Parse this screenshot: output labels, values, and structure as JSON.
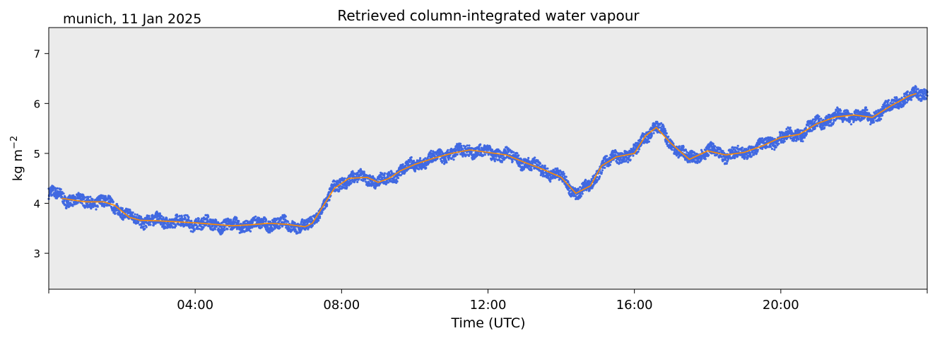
{
  "header": {
    "location_date": "munich, 11 Jan 2025"
  },
  "chart_data": {
    "type": "line",
    "title": "Retrieved column-integrated water vapour",
    "xlabel": "Time (UTC)",
    "ylabel_main": "kg m",
    "ylabel_sup": "−2",
    "x_unit": "hours (UTC)",
    "xlim": [
      0,
      24
    ],
    "ylim": [
      2.28,
      7.52
    ],
    "xticks": [
      {
        "value": 0,
        "label": ""
      },
      {
        "value": 4,
        "label": "04:00"
      },
      {
        "value": 8,
        "label": "08:00"
      },
      {
        "value": 12,
        "label": "12:00"
      },
      {
        "value": 16,
        "label": "16:00"
      },
      {
        "value": 20,
        "label": "20:00"
      },
      {
        "value": 24,
        "label": ""
      }
    ],
    "yticks": [
      3,
      4,
      5,
      6,
      7
    ],
    "grid": false,
    "background": "#ebebeb",
    "series": [
      {
        "style": "scatter-band",
        "color": "#4169e1",
        "band_halfwidth": 0.07,
        "points": [
          [
            0,
            4.2
          ],
          [
            0.25,
            4.18
          ],
          [
            0.5,
            4.08
          ],
          [
            1,
            4.03
          ],
          [
            1.5,
            4.03
          ],
          [
            1.8,
            3.96
          ],
          [
            2.2,
            3.72
          ],
          [
            2.5,
            3.66
          ],
          [
            3,
            3.65
          ],
          [
            3.5,
            3.63
          ],
          [
            4,
            3.61
          ],
          [
            4.5,
            3.58
          ],
          [
            5,
            3.55
          ],
          [
            5.5,
            3.57
          ],
          [
            6,
            3.6
          ],
          [
            6.5,
            3.58
          ],
          [
            7,
            3.53
          ],
          [
            7.2,
            3.6
          ],
          [
            7.5,
            3.95
          ],
          [
            7.8,
            4.3
          ],
          [
            8.2,
            4.5
          ],
          [
            8.7,
            4.52
          ],
          [
            9,
            4.42
          ],
          [
            9.3,
            4.5
          ],
          [
            9.6,
            4.65
          ],
          [
            10,
            4.78
          ],
          [
            10.5,
            4.9
          ],
          [
            11,
            5
          ],
          [
            11.5,
            5.07
          ],
          [
            12,
            5.02
          ],
          [
            12.5,
            4.97
          ],
          [
            13,
            4.82
          ],
          [
            13.5,
            4.68
          ],
          [
            14,
            4.52
          ],
          [
            14.4,
            4.2
          ],
          [
            14.8,
            4.35
          ],
          [
            15.1,
            4.75
          ],
          [
            15.5,
            4.93
          ],
          [
            16,
            5.0
          ],
          [
            16.3,
            5.35
          ],
          [
            16.6,
            5.55
          ],
          [
            17,
            5.2
          ],
          [
            17.5,
            4.88
          ],
          [
            18,
            5.05
          ],
          [
            18.5,
            4.97
          ],
          [
            19,
            5.02
          ],
          [
            19.5,
            5.15
          ],
          [
            20,
            5.32
          ],
          [
            20.5,
            5.38
          ],
          [
            21,
            5.6
          ],
          [
            21.5,
            5.73
          ],
          [
            22,
            5.77
          ],
          [
            22.5,
            5.72
          ],
          [
            23,
            5.95
          ],
          [
            23.5,
            6.15
          ],
          [
            24,
            6.2
          ]
        ]
      },
      {
        "style": "line",
        "color": "#ff8c00",
        "points": [
          [
            0.35,
            4.1
          ],
          [
            1,
            4.03
          ],
          [
            1.5,
            4.03
          ],
          [
            1.8,
            3.96
          ],
          [
            2.2,
            3.72
          ],
          [
            2.5,
            3.66
          ],
          [
            3,
            3.65
          ],
          [
            3.5,
            3.63
          ],
          [
            4,
            3.61
          ],
          [
            4.5,
            3.58
          ],
          [
            5,
            3.55
          ],
          [
            5.5,
            3.57
          ],
          [
            6,
            3.6
          ],
          [
            6.5,
            3.58
          ],
          [
            7,
            3.53
          ],
          [
            7.2,
            3.6
          ],
          [
            7.5,
            3.95
          ],
          [
            7.8,
            4.3
          ],
          [
            8.2,
            4.5
          ],
          [
            8.7,
            4.52
          ],
          [
            9,
            4.42
          ],
          [
            9.3,
            4.5
          ],
          [
            9.6,
            4.65
          ],
          [
            10,
            4.78
          ],
          [
            10.5,
            4.9
          ],
          [
            11,
            5
          ],
          [
            11.5,
            5.07
          ],
          [
            12,
            5.02
          ],
          [
            12.5,
            4.97
          ],
          [
            13,
            4.82
          ],
          [
            13.5,
            4.68
          ],
          [
            14,
            4.52
          ],
          [
            14.4,
            4.2
          ],
          [
            14.8,
            4.35
          ],
          [
            15.1,
            4.75
          ],
          [
            15.5,
            4.93
          ],
          [
            16,
            5.0
          ],
          [
            16.3,
            5.35
          ],
          [
            16.6,
            5.52
          ],
          [
            17,
            5.2
          ],
          [
            17.5,
            4.88
          ],
          [
            18,
            5.05
          ],
          [
            18.5,
            4.97
          ],
          [
            19,
            5.02
          ],
          [
            19.5,
            5.15
          ],
          [
            20,
            5.32
          ],
          [
            20.5,
            5.38
          ],
          [
            21,
            5.6
          ],
          [
            21.5,
            5.73
          ],
          [
            22,
            5.77
          ],
          [
            22.5,
            5.72
          ],
          [
            23,
            5.95
          ],
          [
            23.5,
            6.15
          ],
          [
            23.7,
            6.2
          ]
        ]
      }
    ]
  }
}
